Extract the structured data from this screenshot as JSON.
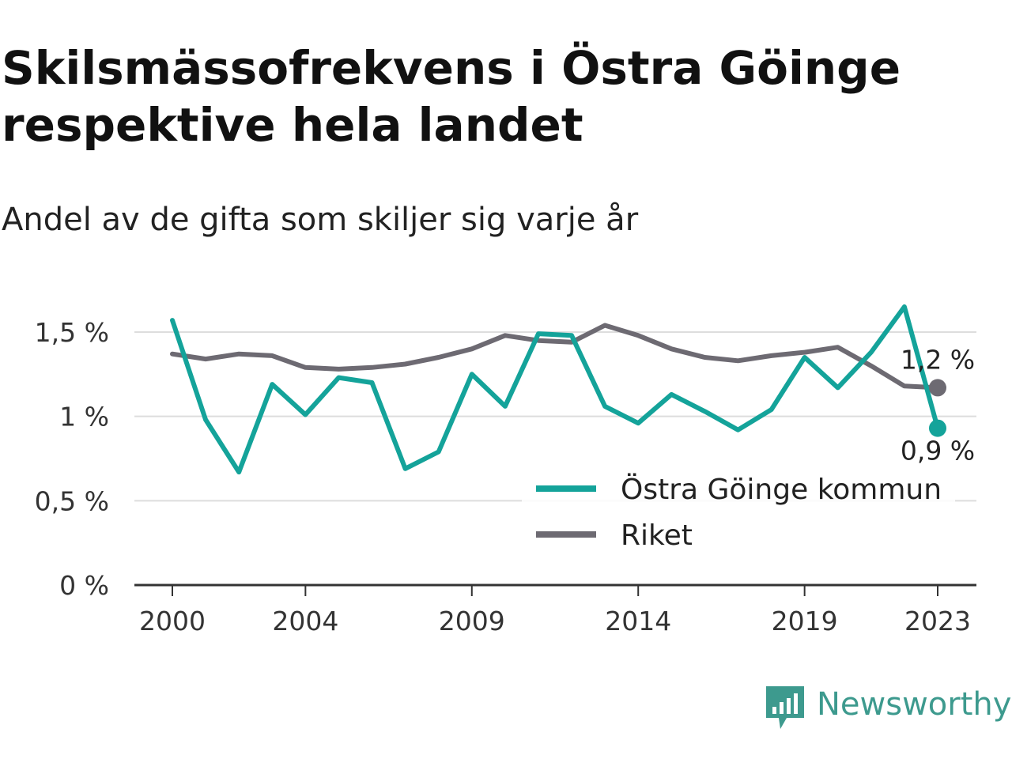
{
  "title": "Skilsmässofrekvens i Östra Göinge respektive hela landet",
  "subtitle": "Andel av de gifta som skiljer sig varje år",
  "brand": {
    "name": "Newsworthy",
    "icon": "newsworthy-logo-icon",
    "color": "#3d9a8e"
  },
  "colors": {
    "ostra_goinge": "#14a39a",
    "riket": "#6d6a72",
    "grid": "#dddddd",
    "axis": "#333333"
  },
  "chart_data": {
    "type": "line",
    "x": [
      2000,
      2001,
      2002,
      2003,
      2004,
      2005,
      2006,
      2007,
      2008,
      2009,
      2010,
      2011,
      2012,
      2013,
      2014,
      2015,
      2016,
      2017,
      2018,
      2019,
      2020,
      2021,
      2022,
      2023
    ],
    "x_tick_labels": [
      "2000",
      "2004",
      "2009",
      "2014",
      "2019",
      "2023"
    ],
    "x_tick_values": [
      2000,
      2004,
      2009,
      2014,
      2019,
      2023
    ],
    "y_tick_labels": [
      "0 %",
      "0,5 %",
      "1 %",
      "1,5 %"
    ],
    "y_tick_values": [
      0,
      0.5,
      1,
      1.5
    ],
    "ylim": [
      0,
      1.7
    ],
    "xlim": [
      1999,
      2024.2
    ],
    "grid": true,
    "legend_position": "bottom-right",
    "series": [
      {
        "name": "Östra Göinge kommun",
        "values": [
          1.57,
          0.98,
          0.67,
          1.19,
          1.01,
          1.23,
          1.2,
          0.69,
          0.79,
          1.25,
          1.06,
          1.49,
          1.48,
          1.06,
          0.96,
          1.13,
          1.03,
          0.92,
          1.04,
          1.35,
          1.17,
          1.38,
          1.65,
          0.93
        ],
        "end_label": "0,9 %"
      },
      {
        "name": "Riket",
        "values": [
          1.37,
          1.34,
          1.37,
          1.36,
          1.29,
          1.28,
          1.29,
          1.31,
          1.35,
          1.4,
          1.48,
          1.45,
          1.44,
          1.54,
          1.48,
          1.4,
          1.35,
          1.33,
          1.36,
          1.38,
          1.41,
          1.3,
          1.18,
          1.17
        ],
        "end_label": "1,2 %"
      }
    ]
  }
}
